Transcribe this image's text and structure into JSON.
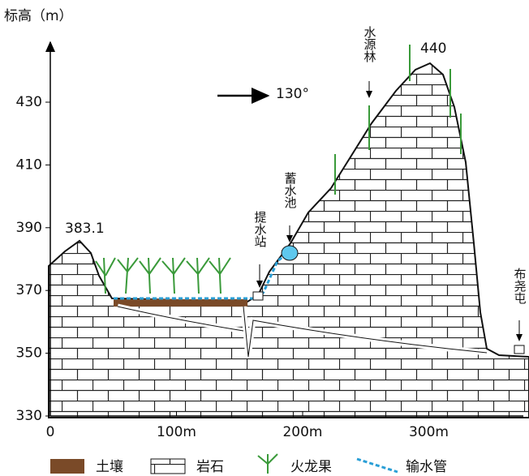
{
  "axis": {
    "y_label": "标高（m）",
    "yticks": [
      430,
      410,
      390,
      370,
      350,
      330
    ],
    "xticks": [
      0,
      {
        "value": 100,
        "label": "100m"
      },
      {
        "value": 200,
        "label": "200m"
      },
      {
        "value": 300,
        "label": "300m"
      }
    ]
  },
  "annotations": {
    "direction": "130°",
    "peak_left": "383.1",
    "peak_right": "440",
    "forest": "水源林",
    "reservoir": "蓄水池",
    "pump_station": "提水站",
    "village": "布尧屯"
  },
  "legend": [
    {
      "label": "土壤"
    },
    {
      "label": "岩石"
    },
    {
      "label": "火龙果"
    },
    {
      "label": "输水管"
    }
  ]
}
